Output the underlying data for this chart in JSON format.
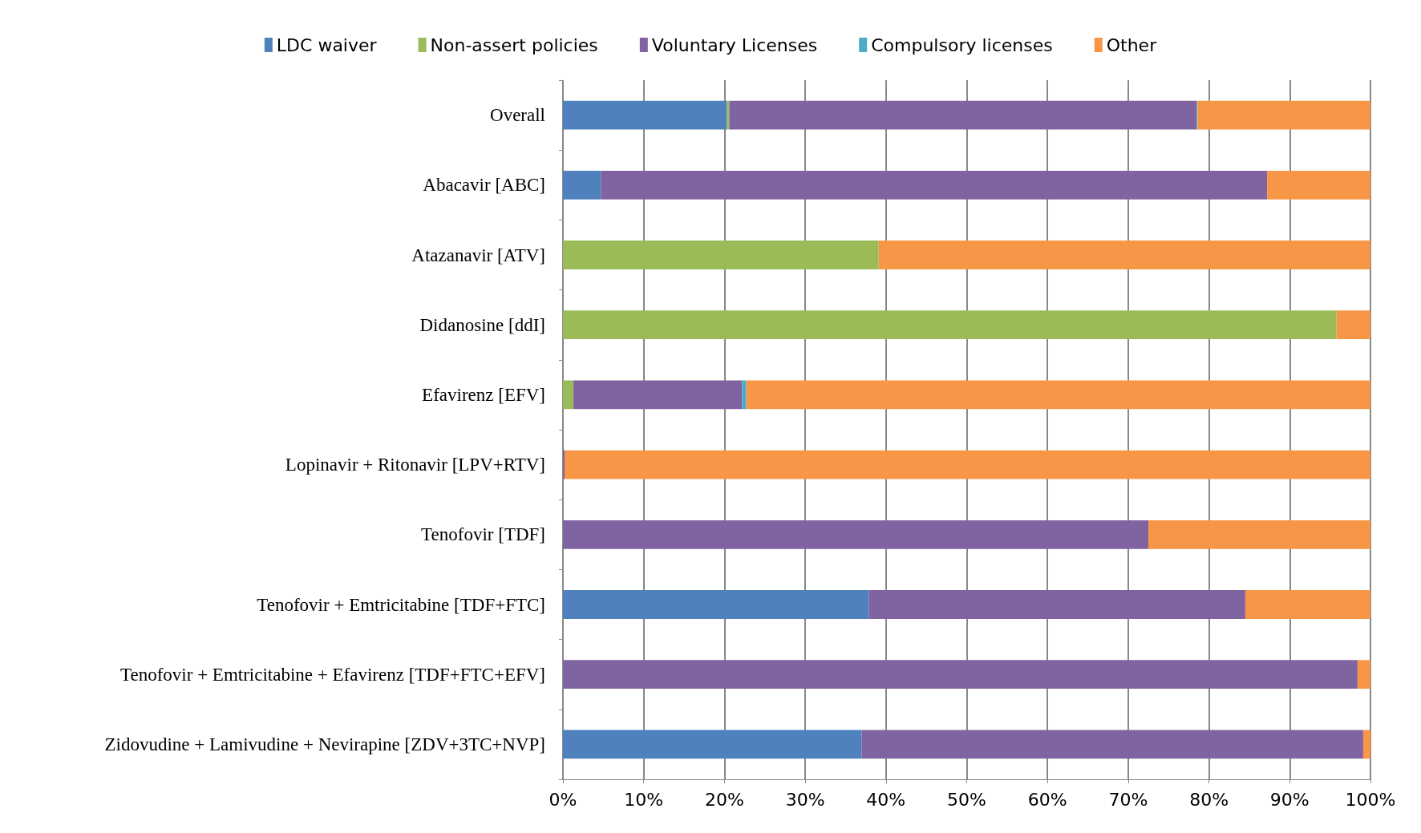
{
  "chart_data": {
    "type": "bar",
    "orientation": "horizontal",
    "stacked": true,
    "categories": [
      "Overall",
      "Abacavir [ABC]",
      "Atazanavir [ATV]",
      "Didanosine [ddI]",
      "Efavirenz [EFV]",
      "Lopinavir + Ritonavir [LPV+RTV]",
      "Tenofovir [TDF]",
      "Tenofovir + Emtricitabine [TDF+FTC]",
      "Tenofovir + Emtricitabine + Efavirenz [TDF+FTC+EFV]",
      "Zidovudine + Lamivudine + Nevirapine [ZDV+3TC+NVP]"
    ],
    "series": [
      {
        "name": "LDC waiver",
        "color": "#4f81bd",
        "values": [
          20.3,
          4.7,
          0,
          0,
          0,
          0,
          0,
          37.9,
          0,
          37.0
        ]
      },
      {
        "name": "Non-assert policies",
        "color": "#9bbb59",
        "values": [
          0.3,
          0,
          39.1,
          95.8,
          1.3,
          0,
          0,
          0,
          0,
          0
        ]
      },
      {
        "name": "Voluntary Licenses",
        "color": "#8064a2",
        "values": [
          57.9,
          82.5,
          0,
          0,
          20.9,
          0.2,
          72.5,
          46.6,
          98.4,
          62.1
        ]
      },
      {
        "name": "Compulsory licenses",
        "color": "#4bacc6",
        "values": [
          0.1,
          0,
          0,
          0,
          0.5,
          0,
          0,
          0,
          0,
          0
        ]
      },
      {
        "name": "Other",
        "color": "#f79646",
        "values": [
          21.4,
          12.8,
          60.9,
          4.2,
          77.3,
          99.8,
          27.5,
          15.5,
          1.6,
          0.9
        ]
      }
    ],
    "xlim": [
      0,
      100
    ],
    "xticks": [
      {
        "value": 0,
        "label": "0%"
      },
      {
        "value": 10,
        "label": "10%"
      },
      {
        "value": 20,
        "label": "20%"
      },
      {
        "value": 30,
        "label": "30%"
      },
      {
        "value": 40,
        "label": "40%"
      },
      {
        "value": 50,
        "label": "50%"
      },
      {
        "value": 60,
        "label": "60%"
      },
      {
        "value": 70,
        "label": "70%"
      },
      {
        "value": 80,
        "label": "80%"
      },
      {
        "value": 90,
        "label": "90%"
      },
      {
        "value": 100,
        "label": "100%"
      }
    ],
    "grid": "x",
    "legend": "top"
  }
}
